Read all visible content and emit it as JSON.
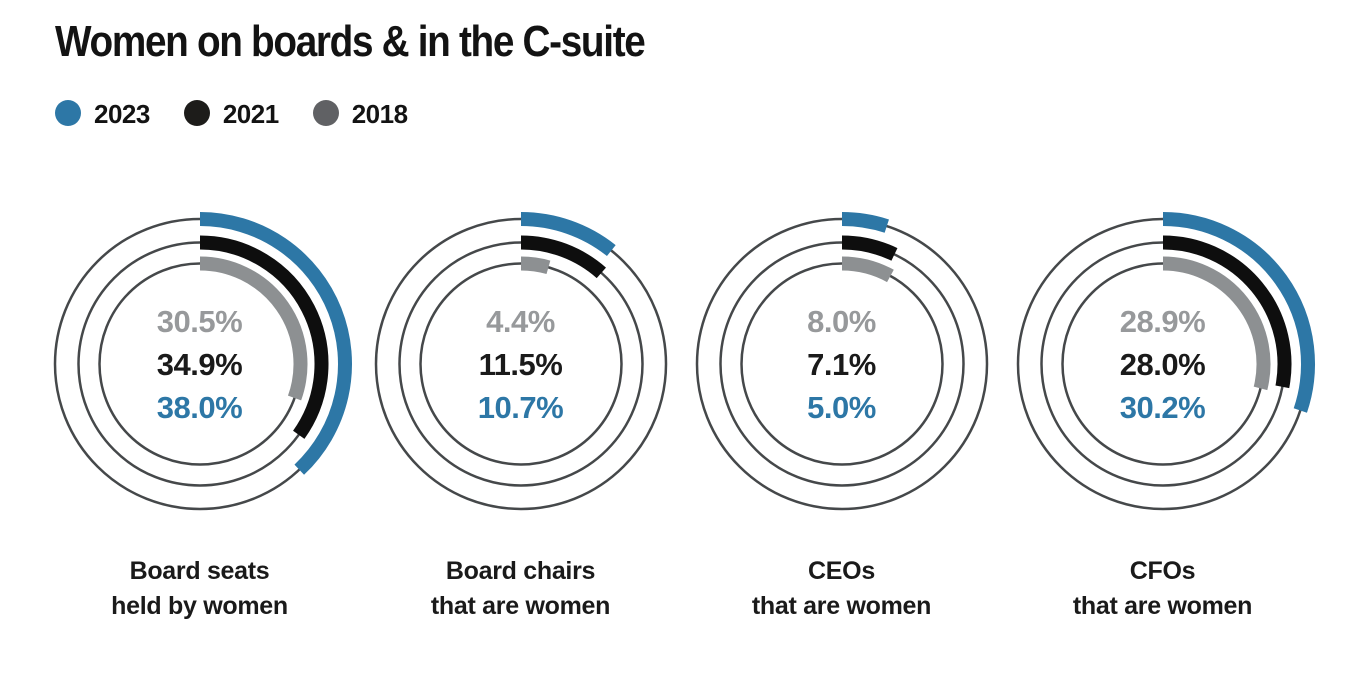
{
  "title": "Women on boards & in the C-suite",
  "legend": {
    "items": [
      {
        "label": "2023",
        "color": "#2d77a6"
      },
      {
        "label": "2021",
        "color": "#1d1c1a"
      },
      {
        "label": "2018",
        "color": "#606164"
      }
    ]
  },
  "chart_data": {
    "type": "donut-rings",
    "title": "Women on boards & in the C-suite",
    "unit": "%",
    "scale_max": 100,
    "start_angle_deg": -90,
    "direction": "clockwise",
    "legend_position": "top-left",
    "categories": [
      "Board seats held by women",
      "Board chairs that are women",
      "CEOs that are women",
      "CFOs that are women"
    ],
    "category_label_lines": [
      [
        "Board seats",
        "held by women"
      ],
      [
        "Board chairs",
        "that are women"
      ],
      [
        "CEOs",
        "that are women"
      ],
      [
        "CFOs",
        "that are women"
      ]
    ],
    "series": [
      {
        "name": "2023",
        "color": "#2d77a6",
        "text_color": "#2d77a6",
        "values": [
          38.0,
          10.7,
          5.0,
          30.2
        ],
        "display_values": [
          "38.0%",
          "10.7%",
          "5.0%",
          "30.2%"
        ]
      },
      {
        "name": "2021",
        "color": "#0e0e0e",
        "text_color": "#1a1a1a",
        "values": [
          34.9,
          11.5,
          7.1,
          28.0
        ],
        "display_values": [
          "34.9%",
          "11.5%",
          "7.1%",
          "28.0%"
        ]
      },
      {
        "name": "2018",
        "color": "#8d9092",
        "text_color": "#97999b",
        "values": [
          30.5,
          4.4,
          8.0,
          28.9
        ],
        "display_values": [
          "30.5%",
          "4.4%",
          "8.0%",
          "28.9%"
        ]
      }
    ],
    "ring_order_outer_to_inner": [
      "2023",
      "2021",
      "2018"
    ],
    "center_text_order_top_to_bottom": [
      "2018",
      "2021",
      "2023"
    ],
    "ring_radii": [
      145,
      121.5,
      100.5
    ],
    "arc_stroke_width": 14,
    "track_stroke_width": 2.5,
    "track_color": "#45484a"
  }
}
